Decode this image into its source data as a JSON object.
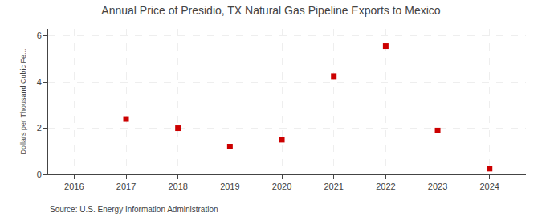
{
  "chart_data": {
    "type": "scatter",
    "title": "Annual Price of Presidio, TX Natural Gas Pipeline Exports to Mexico",
    "ylabel": "Dollars per Thousand Cubic Fe...",
    "source": "Source: U.S. Energy Information Administration",
    "x": [
      2017,
      2018,
      2019,
      2020,
      2021,
      2022,
      2023,
      2024
    ],
    "values": [
      2.4,
      2.0,
      1.2,
      1.5,
      4.25,
      5.55,
      1.9,
      0.25
    ],
    "xlim": [
      2015.5,
      2024.7
    ],
    "xticks": [
      2016,
      2017,
      2018,
      2019,
      2020,
      2021,
      2022,
      2023,
      2024
    ],
    "ylim": [
      0,
      6.3
    ],
    "yticks": [
      0,
      2,
      4,
      6
    ],
    "color": "#cc0000",
    "marker": "square",
    "grid": true
  }
}
